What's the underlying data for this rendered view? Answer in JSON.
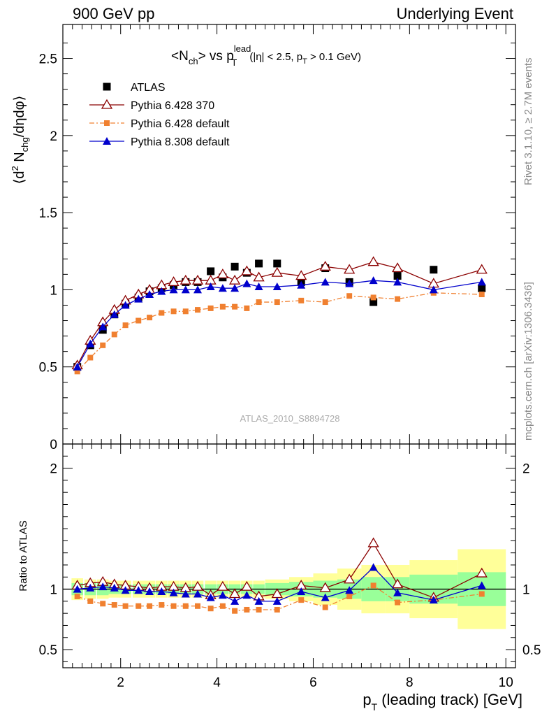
{
  "header": {
    "left": "900 GeV pp",
    "right": "Underlying Event"
  },
  "side_text": {
    "rivet": "Rivet 3.1.10, ≥ 2.7M events",
    "mcplots": "mcplots.cern.ch [arXiv:1306.3436]"
  },
  "plot_title": {
    "lhs": "<N",
    "lhs_sub": "ch",
    "lhs_end": "> vs p",
    "p_sup": "lead",
    "p_sub": "T",
    "cond1": "(|η| < 2.5, p",
    "cond_sub": "T",
    "cond2": " > 0.1 GeV)"
  },
  "ylabel_top": {
    "pre": "⟨d",
    "sup2": "2",
    "mid": " N",
    "sub": "chg",
    "post": "/dηdφ⟩"
  },
  "ylabel_bottom": "Ratio to ATLAS",
  "xlabel": {
    "p": "p",
    "sub": "T",
    "rest": " (leading track) [GeV]"
  },
  "analysis_tag": "ATLAS_2010_S8894728",
  "legend": [
    {
      "name": "ATLAS",
      "color": "#000000",
      "marker": "square"
    },
    {
      "name": "Pythia 6.428 370",
      "color": "#8b0000",
      "marker": "open-triangle"
    },
    {
      "name": "Pythia 6.428 default",
      "color": "#f08030",
      "marker": "small-square",
      "dash": "dashdot"
    },
    {
      "name": "Pythia 8.308 default",
      "color": "#0000cc",
      "marker": "triangle"
    }
  ],
  "colors": {
    "band_inner": "#99ff99",
    "band_outer": "#ffff99"
  },
  "chart_data": {
    "type": "scatter",
    "xlim": [
      0.8,
      10.2
    ],
    "top_panel": {
      "ylim": [
        0,
        2.72
      ],
      "x_ticks": [
        2,
        4,
        6,
        8,
        10
      ],
      "y_ticks": [
        0,
        0.5,
        1,
        1.5,
        2,
        2.5
      ],
      "y_tick_labels": [
        "0",
        "0.5",
        "1",
        "1.5",
        "2",
        "2.5"
      ]
    },
    "ratio_panel": {
      "ylim": [
        0.35,
        2.2
      ],
      "x_ticks": [
        2,
        4,
        6,
        8,
        10
      ],
      "x_tick_labels": [
        "2",
        "4",
        "6",
        "8",
        "10"
      ],
      "y_ticks": [
        0.5,
        1,
        2
      ],
      "y_tick_labels": [
        "0.5",
        "1",
        "2"
      ]
    },
    "x": [
      1.1,
      1.37,
      1.63,
      1.87,
      2.1,
      2.37,
      2.6,
      2.85,
      3.1,
      3.35,
      3.6,
      3.87,
      4.12,
      4.37,
      4.62,
      4.87,
      5.25,
      5.75,
      6.25,
      6.75,
      7.25,
      7.75,
      8.5,
      9.5
    ],
    "x_half_width": [
      0.12,
      0.12,
      0.12,
      0.12,
      0.12,
      0.12,
      0.12,
      0.12,
      0.12,
      0.12,
      0.12,
      0.12,
      0.12,
      0.12,
      0.12,
      0.12,
      0.25,
      0.25,
      0.25,
      0.25,
      0.25,
      0.25,
      0.5,
      0.5
    ],
    "series": [
      {
        "name": "ATLAS",
        "values": [
          0.5,
          0.64,
          0.74,
          0.84,
          0.91,
          0.95,
          0.99,
          1.01,
          1.03,
          1.05,
          1.05,
          1.12,
          1.08,
          1.15,
          1.11,
          1.17,
          1.17,
          1.05,
          1.14,
          1.05,
          0.92,
          1.09,
          1.13,
          1.01
        ]
      },
      {
        "name": "Pythia 6.428 370",
        "values": [
          0.51,
          0.67,
          0.79,
          0.87,
          0.93,
          0.97,
          1.0,
          1.03,
          1.05,
          1.06,
          1.06,
          1.06,
          1.1,
          1.06,
          1.12,
          1.08,
          1.11,
          1.09,
          1.15,
          1.13,
          1.18,
          1.14,
          1.04,
          1.13
        ]
      },
      {
        "name": "Pythia 6.428 default",
        "values": [
          0.47,
          0.56,
          0.64,
          0.71,
          0.77,
          0.8,
          0.82,
          0.85,
          0.86,
          0.86,
          0.87,
          0.88,
          0.89,
          0.89,
          0.88,
          0.92,
          0.92,
          0.93,
          0.92,
          0.96,
          0.95,
          0.94,
          0.98,
          0.97
        ]
      },
      {
        "name": "Pythia 8.308 default",
        "values": [
          0.5,
          0.65,
          0.76,
          0.84,
          0.9,
          0.94,
          0.97,
          0.99,
          1.0,
          1.0,
          1.0,
          1.02,
          1.01,
          1.01,
          1.04,
          1.02,
          1.02,
          1.03,
          1.05,
          1.04,
          1.06,
          1.05,
          1.0,
          1.05
        ]
      }
    ],
    "ratio_series": [
      {
        "name": "Pythia 6.428 370",
        "values": [
          1.03,
          1.05,
          1.06,
          1.04,
          1.03,
          1.02,
          1.01,
          1.02,
          1.02,
          1.01,
          1.02,
          0.95,
          1.02,
          0.96,
          1.02,
          0.94,
          0.96,
          1.03,
          1.01,
          1.08,
          1.38,
          1.04,
          0.93,
          1.13
        ]
      },
      {
        "name": "Pythia 6.428 default",
        "values": [
          0.94,
          0.9,
          0.88,
          0.87,
          0.86,
          0.86,
          0.86,
          0.87,
          0.86,
          0.86,
          0.86,
          0.84,
          0.86,
          0.82,
          0.83,
          0.83,
          0.83,
          0.91,
          0.85,
          0.94,
          1.03,
          0.89,
          0.91,
          0.96
        ]
      },
      {
        "name": "Pythia 8.308 default",
        "values": [
          1.0,
          1.01,
          1.02,
          1.01,
          0.99,
          0.99,
          0.98,
          0.98,
          0.97,
          0.96,
          0.96,
          0.93,
          0.95,
          0.9,
          0.95,
          0.9,
          0.9,
          0.98,
          0.93,
          0.99,
          1.18,
          0.97,
          0.91,
          1.03
        ]
      }
    ],
    "ratio_band_inner": [
      0.05,
      0.05,
      0.05,
      0.04,
      0.04,
      0.04,
      0.04,
      0.04,
      0.04,
      0.04,
      0.04,
      0.04,
      0.04,
      0.04,
      0.04,
      0.04,
      0.05,
      0.06,
      0.07,
      0.08,
      0.1,
      0.1,
      0.12,
      0.14
    ],
    "ratio_band_outer": [
      0.09,
      0.08,
      0.08,
      0.07,
      0.07,
      0.07,
      0.07,
      0.07,
      0.07,
      0.07,
      0.07,
      0.07,
      0.07,
      0.07,
      0.07,
      0.07,
      0.08,
      0.1,
      0.13,
      0.17,
      0.2,
      0.2,
      0.24,
      0.33
    ]
  }
}
